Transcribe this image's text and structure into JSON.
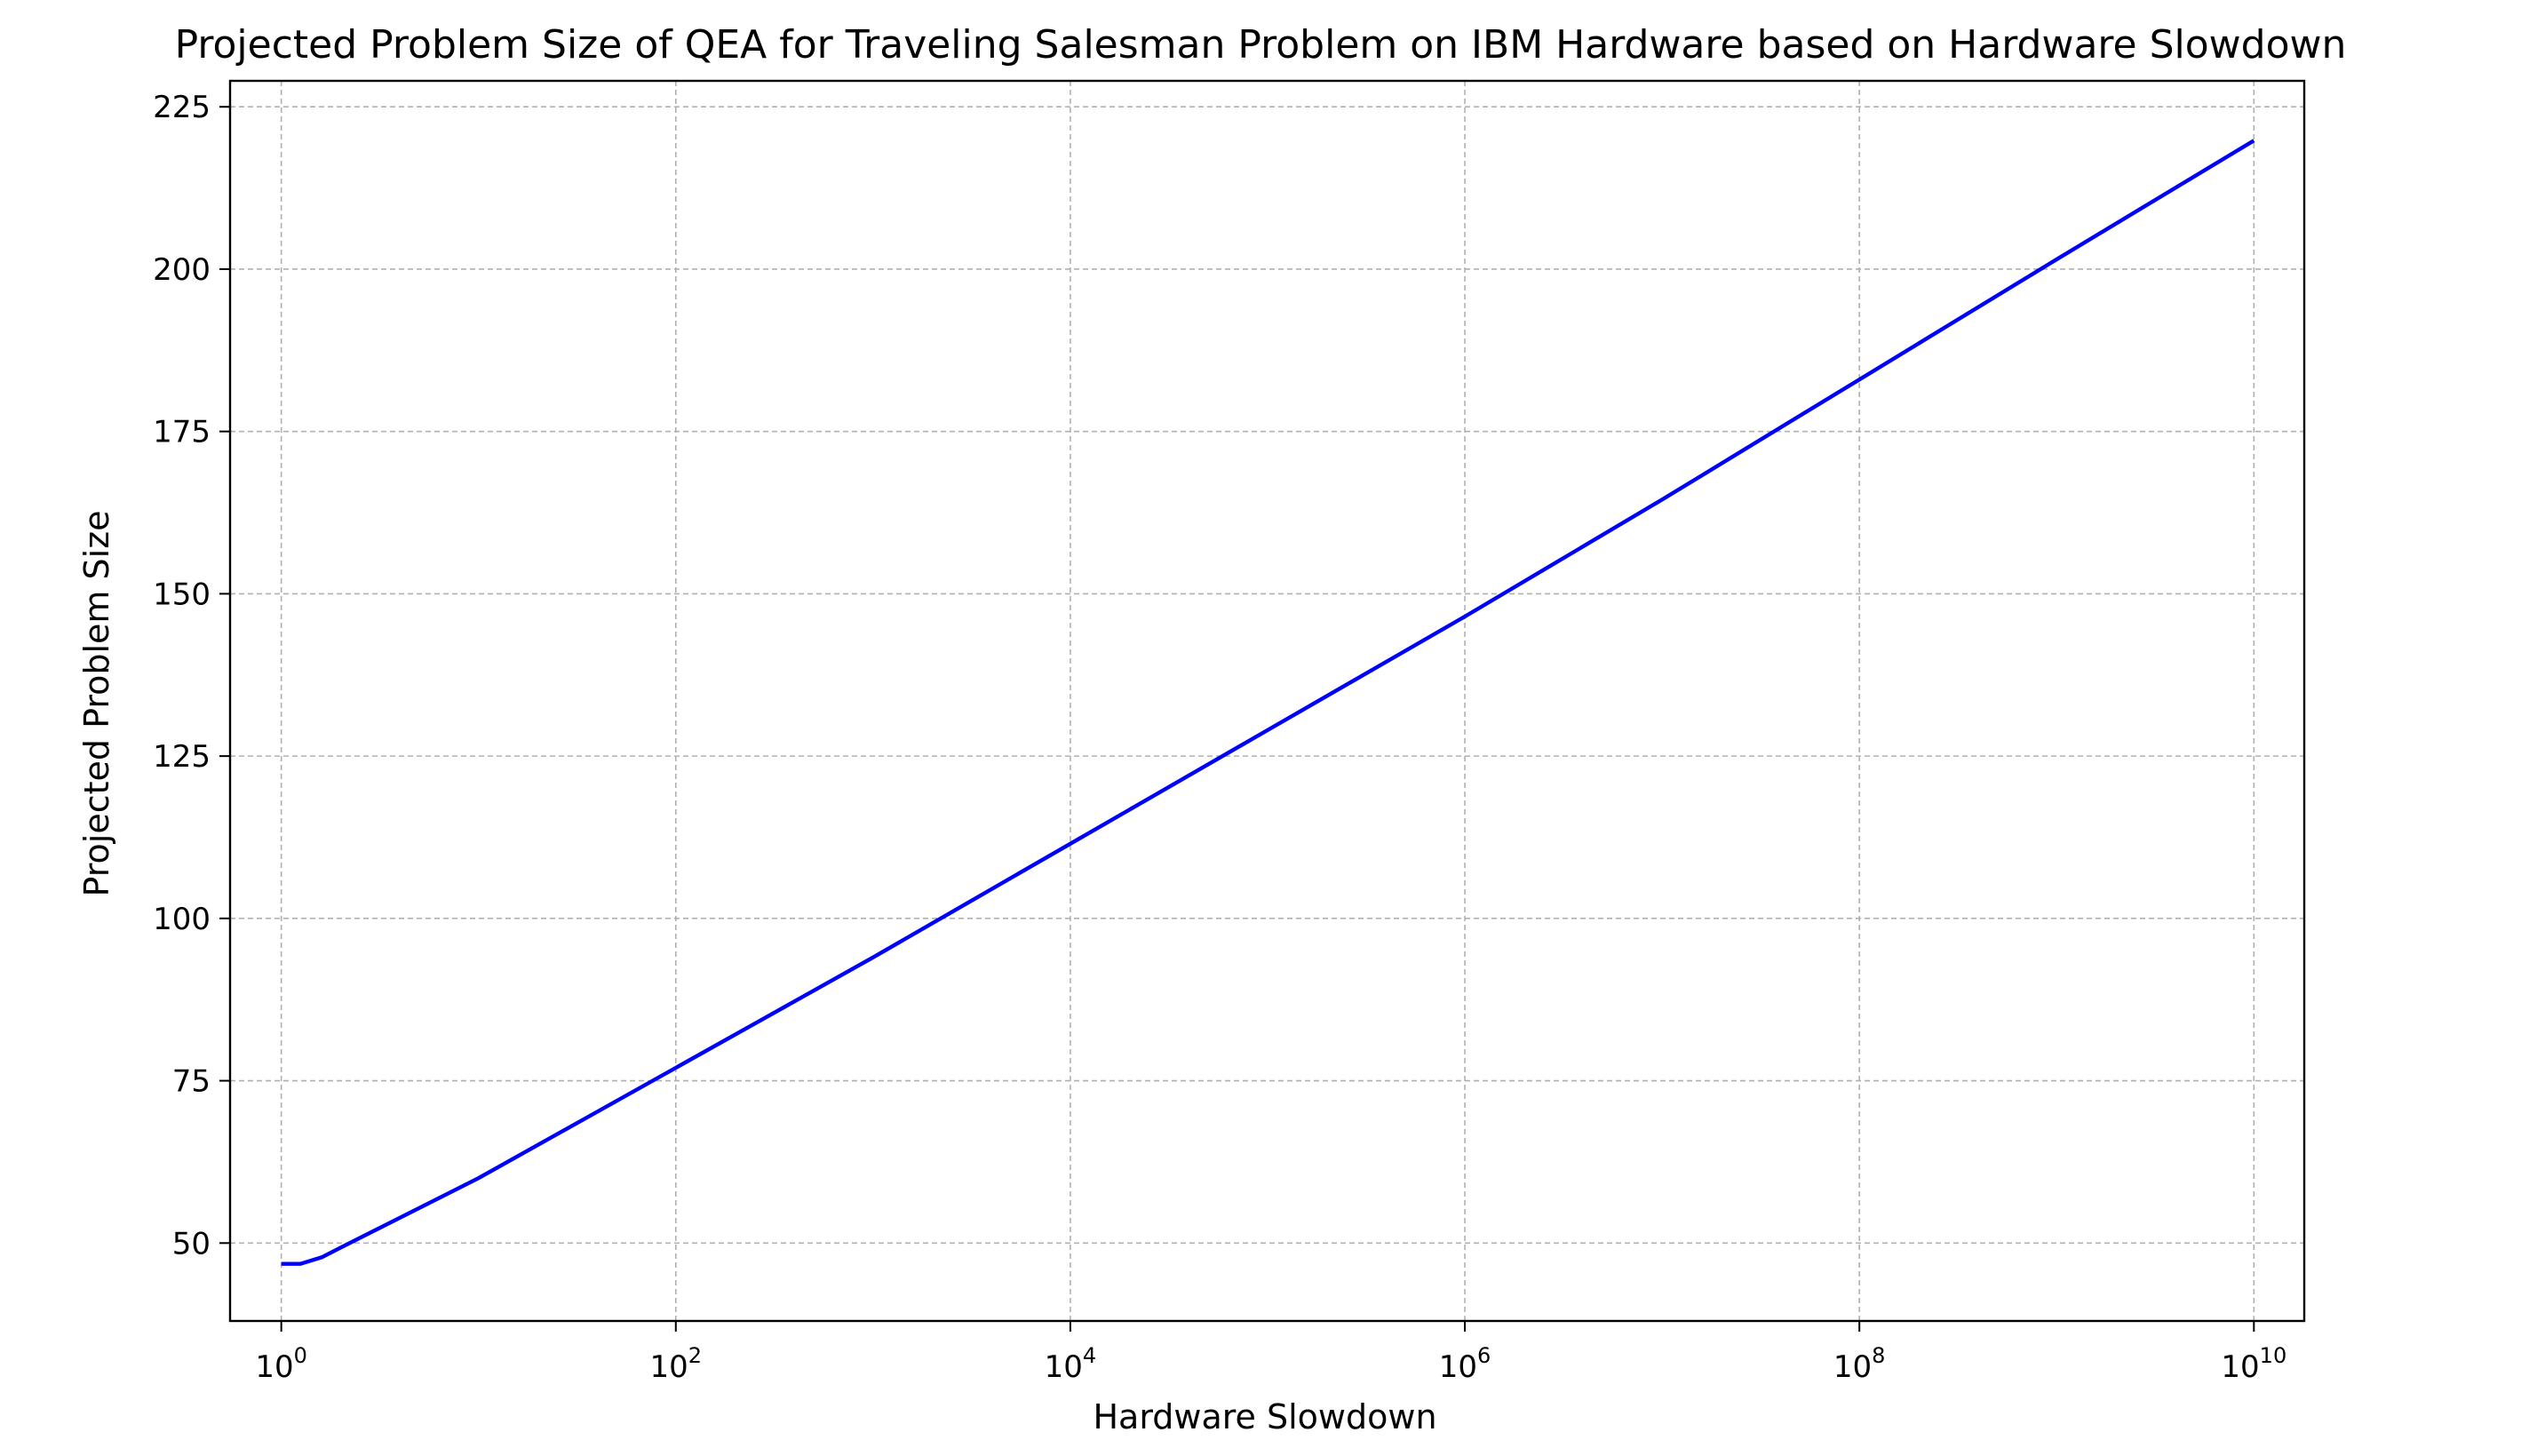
{
  "chart_data": {
    "type": "line",
    "title": "Projected Problem Size of QEA for Traveling Salesman Problem on IBM Hardware based on Hardware Slowdown",
    "xlabel": "Hardware Slowdown",
    "ylabel": "Projected Problem Size",
    "xscale": "log",
    "xlim": [
      0.55,
      18000000000
    ],
    "ylim": [
      38,
      229
    ],
    "grid": true,
    "x_ticks": [
      {
        "value": 1,
        "base": "10",
        "exp": "0"
      },
      {
        "value": 100,
        "base": "10",
        "exp": "2"
      },
      {
        "value": 10000,
        "base": "10",
        "exp": "4"
      },
      {
        "value": 1000000,
        "base": "10",
        "exp": "6"
      },
      {
        "value": 100000000,
        "base": "10",
        "exp": "8"
      },
      {
        "value": 10000000000,
        "base": "10",
        "exp": "10"
      }
    ],
    "y_ticks": [
      50,
      75,
      100,
      125,
      150,
      175,
      200,
      225
    ],
    "series": [
      {
        "color": "#0000ff",
        "x": [
          1,
          1.25,
          1.6,
          2,
          10,
          100,
          1000,
          10000,
          100000,
          1000000,
          10000000,
          100000000,
          1000000000,
          10000000000
        ],
        "y": [
          46.8,
          46.8,
          47.8,
          49.3,
          60,
          77,
          94,
          111.5,
          129,
          146.5,
          164.5,
          183,
          201.5,
          219.8
        ]
      }
    ]
  }
}
